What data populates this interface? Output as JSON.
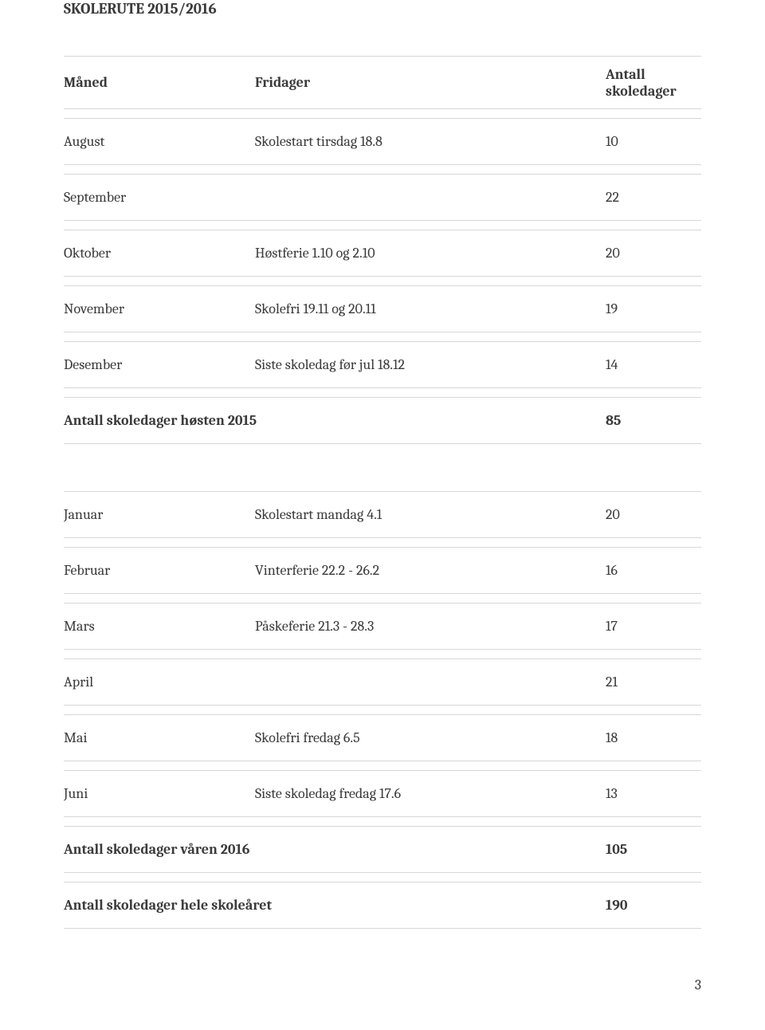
{
  "title": "SKOLERUTE 2015/2016",
  "header": {
    "month": "Måned",
    "desc": "Fridager",
    "days": "Antall skoledager"
  },
  "rows_fall": [
    {
      "month": "August",
      "desc": "Skolestart tirsdag 18.8",
      "days": "10"
    },
    {
      "month": "September",
      "desc": "",
      "days": "22"
    },
    {
      "month": "Oktober",
      "desc": "Høstferie 1.10 og 2.10",
      "days": "20"
    },
    {
      "month": "November",
      "desc": "Skolefri 19.11 og 20.11",
      "days": "19"
    },
    {
      "month": "Desember",
      "desc": "Siste skoledag før jul 18.12",
      "days": "14"
    }
  ],
  "subtotal_fall": {
    "label": "Antall skoledager høsten 2015",
    "days": "85"
  },
  "rows_spring": [
    {
      "month": "Januar",
      "desc": "Skolestart mandag 4.1",
      "days": "20"
    },
    {
      "month": "Februar",
      "desc": "Vinterferie 22.2 - 26.2",
      "days": "16"
    },
    {
      "month": "Mars",
      "desc": "Påskeferie 21.3 - 28.3",
      "days": "17"
    },
    {
      "month": "April",
      "desc": "",
      "days": "21"
    },
    {
      "month": "Mai",
      "desc": "Skolefri fredag 6.5",
      "days": "18"
    },
    {
      "month": "Juni",
      "desc": "Siste skoledag fredag 17.6",
      "days": "13"
    }
  ],
  "subtotal_spring": {
    "label": "Antall skoledager våren 2016",
    "days": "105"
  },
  "grand_total": {
    "label": "Antall skoledager hele skoleåret",
    "days": "190"
  },
  "page_number": "3"
}
